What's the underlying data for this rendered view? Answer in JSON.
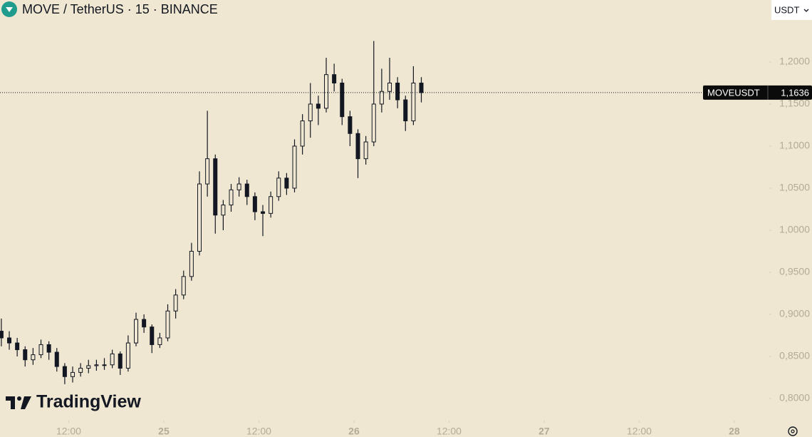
{
  "chart_data": {
    "type": "candlestick",
    "title": "MOVE / TetherUS · 15 · BINANCE",
    "currency": "USDT",
    "watermark": "TradingView",
    "symbol": "MOVEUSDT",
    "last_price": 1.1636,
    "last_price_label": "1,1636",
    "color": "#131722",
    "x": [
      3.5,
      4.5,
      5.5,
      6.5,
      7.5,
      8.5,
      9.5,
      10.5,
      11.5,
      12.5,
      13.5,
      14.5,
      15.5,
      16.5,
      17.5,
      18.5,
      19.5,
      20.5,
      21.5,
      22.5,
      23.5,
      24.5,
      25.5,
      26.5,
      27.5,
      28.5,
      29.5,
      30.5,
      31.5,
      32.5,
      33.5,
      34.5,
      35.5,
      36.5,
      37.5,
      38.5,
      39.5,
      40.5,
      41.5,
      42.5,
      43.5,
      44.5,
      45.5,
      46.5,
      47.5,
      48.5,
      49.5,
      50.5,
      51.5,
      52.5,
      53.5,
      54.5,
      55.5,
      56.5
    ],
    "open": [
      0.88,
      0.872,
      0.866,
      0.858,
      0.846,
      0.852,
      0.864,
      0.855,
      0.838,
      0.826,
      0.831,
      0.836,
      0.839,
      0.84,
      0.84,
      0.853,
      0.836,
      0.866,
      0.894,
      0.885,
      0.864,
      0.872,
      0.904,
      0.923,
      0.945,
      0.975,
      1.055,
      1.085,
      1.018,
      1.03,
      1.048,
      1.055,
      1.04,
      1.022,
      1.02,
      1.04,
      1.062,
      1.05,
      1.1,
      1.13,
      1.15,
      1.145,
      1.185,
      1.175,
      1.135,
      1.115,
      1.085,
      1.105,
      1.15,
      1.165,
      1.175,
      1.155,
      1.13,
      1.175
    ],
    "high": [
      0.895,
      0.88,
      0.872,
      0.862,
      0.86,
      0.87,
      0.868,
      0.86,
      0.842,
      0.838,
      0.842,
      0.846,
      0.846,
      0.848,
      0.858,
      0.856,
      0.875,
      0.902,
      0.9,
      0.888,
      0.878,
      0.912,
      0.93,
      0.952,
      0.985,
      1.07,
      1.142,
      1.09,
      1.036,
      1.055,
      1.063,
      1.06,
      1.045,
      1.03,
      1.046,
      1.07,
      1.068,
      1.108,
      1.138,
      1.175,
      1.16,
      1.205,
      1.198,
      1.18,
      1.142,
      1.12,
      1.112,
      1.225,
      1.192,
      1.205,
      1.182,
      1.16,
      1.195,
      1.182
    ],
    "low": [
      0.862,
      0.858,
      0.85,
      0.838,
      0.84,
      0.848,
      0.846,
      0.832,
      0.817,
      0.819,
      0.826,
      0.83,
      0.833,
      0.834,
      0.836,
      0.828,
      0.832,
      0.862,
      0.878,
      0.854,
      0.86,
      0.868,
      0.895,
      0.918,
      0.94,
      0.97,
      1.04,
      0.996,
      1.0,
      1.022,
      1.04,
      1.03,
      1.012,
      0.993,
      1.015,
      1.035,
      1.042,
      1.045,
      1.09,
      1.11,
      1.125,
      1.14,
      1.165,
      1.125,
      1.1,
      1.062,
      1.078,
      1.1,
      1.14,
      1.155,
      1.145,
      1.118,
      1.125,
      1.152
    ],
    "close": [
      0.872,
      0.866,
      0.858,
      0.846,
      0.852,
      0.864,
      0.855,
      0.838,
      0.826,
      0.831,
      0.836,
      0.839,
      0.84,
      0.84,
      0.853,
      0.836,
      0.866,
      0.894,
      0.885,
      0.864,
      0.872,
      0.904,
      0.923,
      0.945,
      0.975,
      1.055,
      1.085,
      1.018,
      1.03,
      1.048,
      1.055,
      1.04,
      1.022,
      1.02,
      1.04,
      1.062,
      1.05,
      1.1,
      1.13,
      1.15,
      1.145,
      1.185,
      1.175,
      1.135,
      1.115,
      1.085,
      1.105,
      1.15,
      1.165,
      1.175,
      1.155,
      1.13,
      1.175,
      1.1636
    ],
    "xlim": [
      3.33,
      100.23
    ],
    "xticks": [
      {
        "value": 12,
        "label": "12:00"
      },
      {
        "value": 24,
        "label": "25"
      },
      {
        "value": 36,
        "label": "12:00"
      },
      {
        "value": 48,
        "label": "26"
      },
      {
        "value": 60,
        "label": "12:00"
      },
      {
        "value": 72,
        "label": "27"
      },
      {
        "value": 84,
        "label": "12:00"
      },
      {
        "value": 96,
        "label": "28"
      }
    ],
    "ylim": [
      0.7737,
      1.2737
    ],
    "yticks": [
      {
        "value": 0.8,
        "label": "0,8000"
      },
      {
        "value": 0.85,
        "label": "0,8500"
      },
      {
        "value": 0.9,
        "label": "0,9000"
      },
      {
        "value": 0.95,
        "label": "0,9500"
      },
      {
        "value": 1.0,
        "label": "1,0000"
      },
      {
        "value": 1.05,
        "label": "1,0500"
      },
      {
        "value": 1.1,
        "label": "1,1000"
      },
      {
        "value": 1.15,
        "label": "1,1500"
      },
      {
        "value": 1.2,
        "label": "1,2000"
      }
    ]
  }
}
